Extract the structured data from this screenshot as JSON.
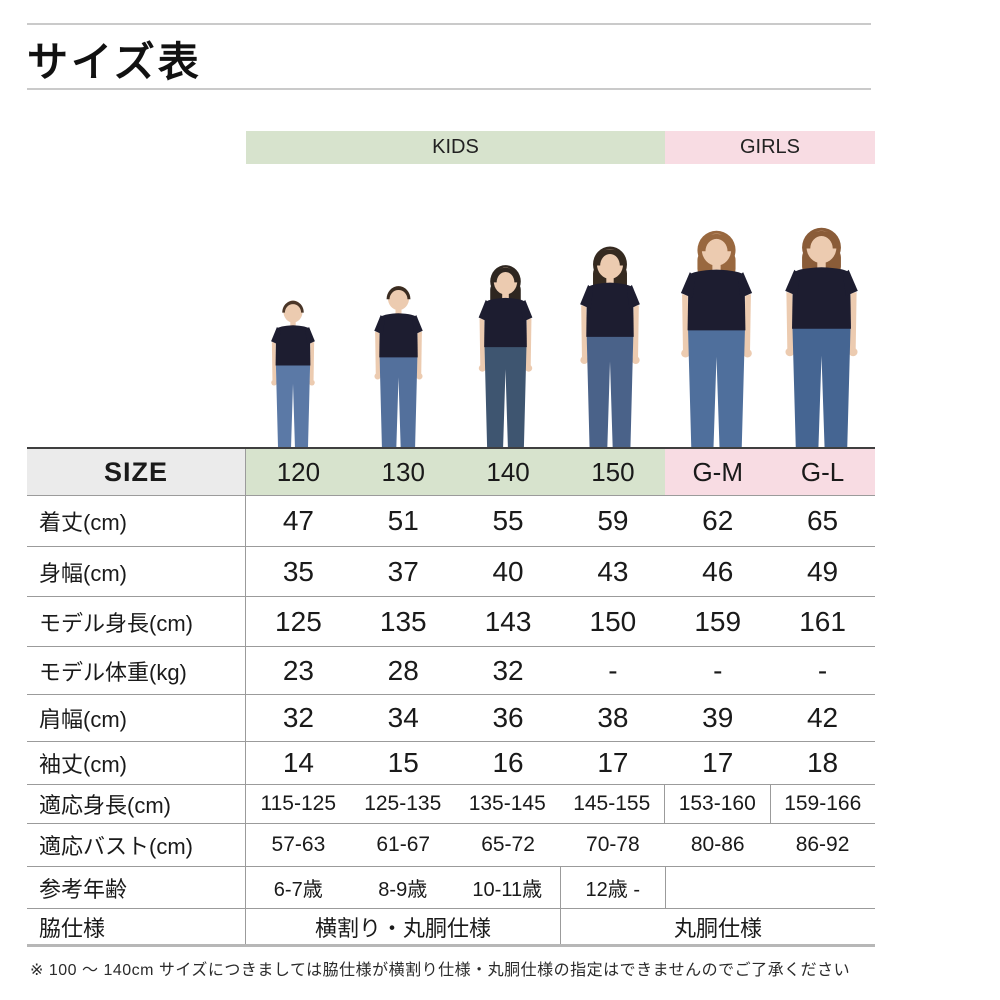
{
  "page": {
    "title": "サイズ表",
    "footnote": "※ 100 〜 140cm サイズにつきましては脇仕様が横割り仕様・丸胴仕様の指定はできませんのでご了承ください"
  },
  "groups": [
    {
      "label": "KIDS"
    },
    {
      "label": "GIRLS"
    }
  ],
  "colors": {
    "kids_bg": "#d7e3cd",
    "girls_bg": "#f8dce3",
    "size_cell_bg": "#ebebeb",
    "shirt_navy": "#1d1d30",
    "skin": "#eccbb0",
    "border_gray": "#9b9b9b"
  },
  "table": {
    "size_header": {
      "label": "SIZE",
      "columns": [
        "120",
        "130",
        "140",
        "150",
        "G-M",
        "G-L"
      ]
    },
    "rows": [
      {
        "label": "着丈(cm)",
        "values": [
          "47",
          "51",
          "55",
          "59",
          "62",
          "65"
        ]
      },
      {
        "label": "身幅(cm)",
        "values": [
          "35",
          "37",
          "40",
          "43",
          "46",
          "49"
        ]
      },
      {
        "label": "モデル身長(cm)",
        "values": [
          "125",
          "135",
          "143",
          "150",
          "159",
          "161"
        ]
      },
      {
        "label": "モデル体重(kg)",
        "values": [
          "23",
          "28",
          "32",
          "-",
          "-",
          "-"
        ]
      },
      {
        "label": "肩幅(cm)",
        "values": [
          "32",
          "34",
          "36",
          "38",
          "39",
          "42"
        ]
      },
      {
        "label": "袖丈(cm)",
        "values": [
          "14",
          "15",
          "16",
          "17",
          "17",
          "18"
        ]
      },
      {
        "label": "適応身長(cm)",
        "values": [
          "115-125",
          "125-135",
          "135-145",
          "145-155",
          "153-160",
          "159-166"
        ]
      },
      {
        "label": "適応バスト(cm)",
        "values": [
          "57-63",
          "61-67",
          "65-72",
          "70-78",
          "80-86",
          "86-92"
        ]
      },
      {
        "label": "参考年齢",
        "values": [
          "6-7歳",
          "8-9歳",
          "10-11歳",
          "12歳 -",
          "",
          ""
        ]
      },
      {
        "label": "脇仕様",
        "merged": [
          {
            "text": "横割り・丸胴仕様",
            "span": 3
          },
          {
            "text": "丸胴仕様",
            "span": 3
          }
        ]
      }
    ]
  },
  "models": [
    {
      "name": "model-photo-120",
      "size": "120",
      "type": "boy",
      "hair": "#4a3628",
      "jeans": "#5b79a6"
    },
    {
      "name": "model-photo-130",
      "size": "130",
      "type": "boy",
      "hair": "#3a2c21",
      "jeans": "#53709c"
    },
    {
      "name": "model-photo-140",
      "size": "140",
      "type": "girl",
      "hair": "#2e2620",
      "jeans": "#3e5570"
    },
    {
      "name": "model-photo-150",
      "size": "150",
      "type": "girl",
      "hair": "#352a20",
      "jeans": "#4a6289"
    },
    {
      "name": "model-photo-G-M",
      "size": "G-M",
      "type": "woman",
      "hair": "#99683f",
      "jeans": "#4f6f9c"
    },
    {
      "name": "model-photo-G-L",
      "size": "G-L",
      "type": "woman",
      "hair": "#8a5c38",
      "jeans": "#456592"
    }
  ]
}
